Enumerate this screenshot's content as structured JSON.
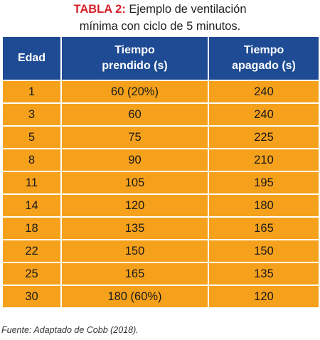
{
  "title": {
    "label": "TABLA 2:",
    "text": "Ejemplo de ventilación mínima con ciclo de 5 minutos."
  },
  "table": {
    "header": [
      [
        "Edad"
      ],
      [
        "Tiempo",
        "prendido (s)"
      ],
      [
        "Tiempo",
        "apagado (s)"
      ]
    ],
    "rows": [
      [
        "1",
        "60 (20%)",
        "240"
      ],
      [
        "3",
        "60",
        "240"
      ],
      [
        "5",
        "75",
        "225"
      ],
      [
        "8",
        "90",
        "210"
      ],
      [
        "11",
        "105",
        "195"
      ],
      [
        "14",
        "120",
        "180"
      ],
      [
        "18",
        "135",
        "165"
      ],
      [
        "22",
        "150",
        "150"
      ],
      [
        "25",
        "165",
        "135"
      ],
      [
        "30",
        "180 (60%)",
        "120"
      ]
    ]
  },
  "source": "Fuente: Adaptado de Cobb (2018)."
}
